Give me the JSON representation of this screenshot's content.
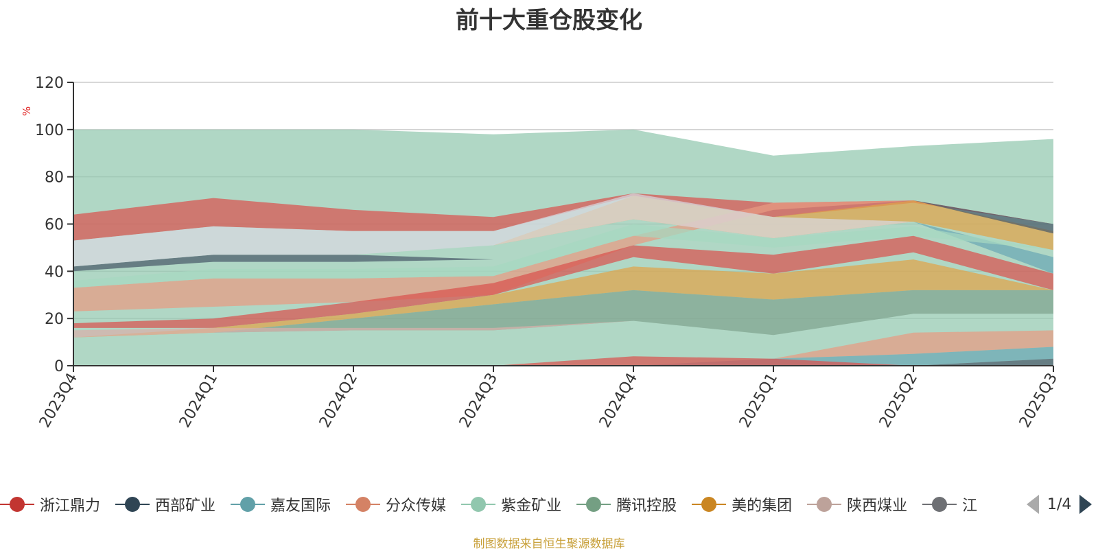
{
  "chart_data": {
    "type": "area",
    "title": "前十大重仓股变化",
    "ylabel": "%",
    "ylim": [
      0,
      120
    ],
    "yticks": [
      0,
      20,
      40,
      60,
      80,
      100,
      120
    ],
    "categories": [
      "2023Q4",
      "2024Q1",
      "2024Q2",
      "2024Q3",
      "2024Q4",
      "2025Q1",
      "2025Q2",
      "2025Q3"
    ],
    "bands": [
      {
        "name": "腾讯控股",
        "color": "#91c7ae",
        "lower": [
          0,
          0,
          0,
          0,
          0,
          0,
          0,
          0
        ],
        "upper": [
          100,
          100,
          100,
          98,
          100,
          89,
          93,
          96
        ]
      },
      {
        "name": "浙江鼎力",
        "color": "#d9534f",
        "lower": [
          53,
          59,
          57,
          57,
          72,
          63,
          69,
          60
        ],
        "upper": [
          64,
          71,
          66,
          63,
          73,
          69,
          70,
          60
        ]
      },
      {
        "name": "美的集团",
        "color": "#e0a34a",
        "lower": [
          42,
          47,
          47,
          51,
          62,
          54,
          61,
          49
        ],
        "upper": [
          42,
          47,
          47,
          51,
          72,
          63,
          70,
          57
        ]
      },
      {
        "name": "西部矿业",
        "color": "#4a5a6a",
        "lower": [
          40,
          44,
          44,
          45,
          72,
          63,
          70,
          56
        ],
        "upper": [
          42,
          47,
          47,
          45,
          72,
          63,
          70,
          60
        ]
      },
      {
        "name": "嘉友国际",
        "color": "#6ba8b4",
        "lower": [
          23,
          25,
          27,
          30,
          51,
          66,
          61,
          39
        ],
        "upper": [
          23,
          25,
          27,
          30,
          51,
          66,
          61,
          46
        ]
      },
      {
        "name": "分众传媒",
        "color": "#e89b82",
        "lower": [
          23,
          25,
          27,
          30,
          51,
          66,
          70,
          39
        ],
        "upper": [
          33,
          37,
          37,
          38,
          55,
          69,
          70,
          39
        ]
      },
      {
        "name": "陕西煤业",
        "color": "#d8d8e0",
        "lower": [
          42,
          47,
          47,
          51,
          62,
          54,
          61,
          49
        ],
        "upper": [
          53,
          59,
          57,
          57,
          73,
          63,
          61,
          49
        ]
      },
      {
        "name": "紫金矿业",
        "color": "#a6d8c0",
        "lower": [
          33,
          37,
          37,
          38,
          55,
          50,
          55,
          49
        ],
        "upper": [
          36,
          41,
          41,
          42,
          60,
          54,
          59,
          49
        ]
      },
      {
        "name": "浙江鼎力",
        "color": "#d9534f",
        "lower": [
          16,
          16,
          22,
          30,
          46,
          39,
          48,
          32
        ],
        "upper": [
          18,
          20,
          27,
          35,
          51,
          47,
          55,
          39
        ]
      },
      {
        "name": "美的集团",
        "color": "#e0a34a",
        "lower": [
          12,
          14,
          20,
          26,
          32,
          28,
          32,
          32
        ],
        "upper": [
          12,
          16,
          22,
          30,
          42,
          39,
          45,
          32
        ]
      },
      {
        "name": "腾讯控股",
        "color": "#7fa38f",
        "lower": [
          12,
          14,
          15,
          15,
          19,
          13,
          22,
          22
        ],
        "upper": [
          12,
          14,
          20,
          26,
          32,
          28,
          32,
          32
        ]
      },
      {
        "name": "陕西煤业",
        "color": "#d8b0aa",
        "lower": [
          12,
          14,
          15,
          15,
          19,
          13,
          22,
          22
        ],
        "upper": [
          15,
          16,
          16,
          16,
          19,
          13,
          22,
          22
        ]
      },
      {
        "name": "分众传媒",
        "color": "#e89b82",
        "lower": [
          0,
          0,
          0,
          0,
          0,
          3,
          5,
          8
        ],
        "upper": [
          0,
          0,
          0,
          0,
          0,
          3,
          14,
          15
        ]
      },
      {
        "name": "嘉友国际",
        "color": "#6ba8b4",
        "lower": [
          0,
          0,
          0,
          0,
          0,
          0,
          0,
          3
        ],
        "upper": [
          0,
          0,
          0,
          0,
          0,
          3,
          5,
          8
        ]
      },
      {
        "name": "西部矿业",
        "color": "#4a5a6a",
        "lower": [
          0,
          0,
          0,
          0,
          0,
          0,
          0,
          0
        ],
        "upper": [
          0,
          0,
          0,
          0,
          0,
          0,
          0,
          3
        ]
      },
      {
        "name": "浙江鼎力",
        "color": "#d9534f",
        "lower": [
          0,
          0,
          0,
          0,
          0,
          0,
          0,
          0
        ],
        "upper": [
          0,
          0,
          0,
          0,
          4,
          3,
          0,
          0
        ]
      }
    ]
  },
  "legend": {
    "items": [
      {
        "label": "浙江鼎力",
        "color": "#c23531"
      },
      {
        "label": "西部矿业",
        "color": "#2f4554"
      },
      {
        "label": "嘉友国际",
        "color": "#61a0a8"
      },
      {
        "label": "分众传媒",
        "color": "#d48265"
      },
      {
        "label": "紫金矿业",
        "color": "#91c7ae"
      },
      {
        "label": "腾讯控股",
        "color": "#749f83"
      },
      {
        "label": "美的集团",
        "color": "#ca8622"
      },
      {
        "label": "陕西煤业",
        "color": "#bda29a"
      },
      {
        "label": "江",
        "color": "#6e7074"
      }
    ],
    "page_indicator": "1/4"
  },
  "source_note": "制图数据来自恒生聚源数据库"
}
